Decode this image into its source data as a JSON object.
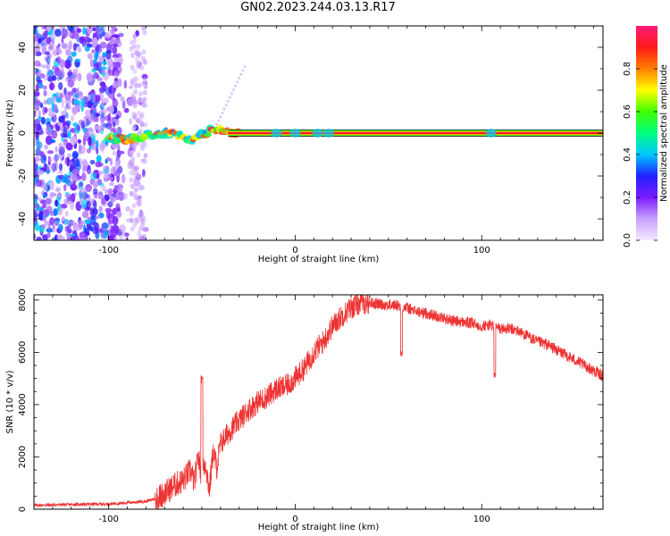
{
  "figure": {
    "title": "GN02.2023.244.03.13.R17"
  },
  "chart_data": [
    {
      "type": "heatmap",
      "xlabel": "Height of straight line (km)",
      "ylabel": "Frequency (Hz)",
      "xlim": [
        -140,
        165
      ],
      "ylim": [
        -50,
        50
      ],
      "x_ticks": [
        "-100",
        "0",
        "100"
      ],
      "y_ticks": [
        "40",
        "20",
        "0",
        "-20",
        "-40"
      ],
      "colorbar": {
        "label": "Normalized spectral amplitude",
        "range": [
          0,
          1
        ],
        "ticks": [
          "0.0",
          "0.2",
          "0.4",
          "0.6",
          "0.8"
        ],
        "colors": [
          "#f4eaff",
          "#c9a2ff",
          "#7b1cff",
          "#2020ff",
          "#00c8ff",
          "#00ff80",
          "#40ff00",
          "#ffff00",
          "#ff8000",
          "#ff1a1a",
          "#ff1a7a"
        ]
      },
      "ridge": {
        "description_points": [
          [
            -100,
            -2
          ],
          [
            -90,
            -3
          ],
          [
            -80,
            -1
          ],
          [
            -70,
            0
          ],
          [
            -65,
            0
          ],
          [
            -60,
            -2
          ],
          [
            -55,
            -4
          ],
          [
            -50,
            -1
          ],
          [
            -45,
            1
          ],
          [
            -40,
            2
          ],
          [
            -35,
            0
          ],
          [
            -30,
            0
          ],
          [
            0,
            0
          ],
          [
            165,
            0
          ]
        ]
      },
      "noise_region": {
        "x_range": [
          -140,
          -80
        ],
        "freq_range": [
          -50,
          50
        ]
      },
      "grid": false
    },
    {
      "type": "line",
      "xlabel": "Height of straight line (km)",
      "ylabel": "SNR (10 * v/v)",
      "xlim": [
        -140,
        165
      ],
      "ylim": [
        0,
        8200
      ],
      "x_ticks": [
        "-100",
        "0",
        "100"
      ],
      "y_ticks": [
        "0",
        "2000",
        "4000",
        "6000",
        "8000"
      ],
      "series": [
        {
          "color": "#ee3333",
          "x": [
            -140,
            -120,
            -100,
            -90,
            -80,
            -75,
            -70,
            -65,
            -60,
            -56,
            -54,
            -52,
            -50,
            -48,
            -46,
            -44,
            -42,
            -40,
            -35,
            -30,
            -25,
            -20,
            -15,
            -10,
            -5,
            0,
            5,
            10,
            15,
            20,
            25,
            30,
            35,
            40,
            45,
            50,
            55,
            60,
            65,
            70,
            75,
            80,
            85,
            90,
            95,
            100,
            105,
            110,
            115,
            120,
            125,
            130,
            135,
            140,
            145,
            150,
            155,
            160,
            165
          ],
          "y": [
            150,
            180,
            200,
            250,
            300,
            400,
            600,
            900,
            1100,
            1500,
            1000,
            2000,
            1200,
            1800,
            700,
            2200,
            1600,
            2500,
            3000,
            3400,
            3800,
            4100,
            4300,
            4600,
            4700,
            5000,
            5400,
            6000,
            6400,
            7000,
            7400,
            7700,
            7900,
            7900,
            7850,
            7800,
            7800,
            7700,
            7550,
            7500,
            7400,
            7300,
            7200,
            7150,
            7100,
            7000,
            7050,
            6900,
            6900,
            6800,
            6600,
            6400,
            6300,
            6100,
            5900,
            5700,
            5500,
            5300,
            5100
          ],
          "spikes": [
            {
              "x": -50,
              "y": 5100
            },
            {
              "x": 57,
              "y": 6100
            },
            {
              "x": 107,
              "y": 5300
            }
          ]
        }
      ],
      "grid": false
    }
  ]
}
